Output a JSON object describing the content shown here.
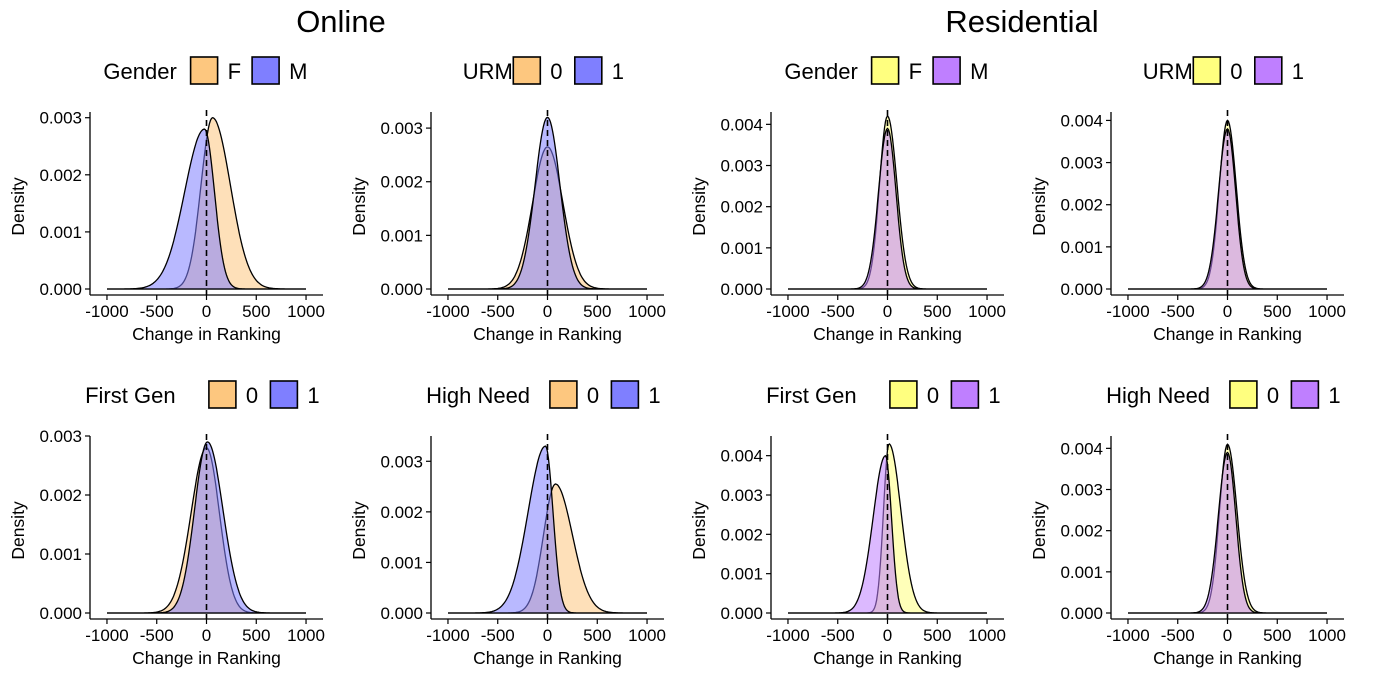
{
  "headers": {
    "left": "Online",
    "right": "Residential"
  },
  "colors": {
    "online_group0": "#FDC77F",
    "online_group1": "#7F7FFF",
    "residential_group0": "#FFFF7F",
    "residential_group1": "#BF7FFF",
    "outline": "#000000",
    "overlap_online": "#7F66C8",
    "overlap_residential": "#BF7FB4"
  },
  "chart_data": [
    {
      "type": "area",
      "group": "Online",
      "legend_title": "Gender",
      "xlabel": "Change in Ranking",
      "ylabel": "Density",
      "xlim": [
        -1000,
        1000
      ],
      "ylim": [
        0,
        0.0031
      ],
      "yticks": [
        "0.000",
        "0.001",
        "0.002",
        "0.003"
      ],
      "xticks": [
        "-1000",
        "-500",
        "0",
        "500",
        "1000"
      ],
      "series": [
        {
          "name": "F",
          "color": "#FDC77F",
          "mode": 60,
          "peak": 0.003,
          "sd_left": 115,
          "sd_right": 180
        },
        {
          "name": "M",
          "color": "#7F7FFF",
          "mode": -20,
          "peak": 0.0028,
          "sd_left": 200,
          "sd_right": 100
        }
      ]
    },
    {
      "type": "area",
      "group": "Online",
      "legend_title": "URM",
      "xlabel": "Change in Ranking",
      "ylabel": "Density",
      "xlim": [
        -1000,
        1000
      ],
      "ylim": [
        0,
        0.0033
      ],
      "yticks": [
        "0.000",
        "0.001",
        "0.002",
        "0.003"
      ],
      "xticks": [
        "-1000",
        "-500",
        "0",
        "500",
        "1000"
      ],
      "series": [
        {
          "name": "0",
          "color": "#FDC77F",
          "mode": 0,
          "peak": 0.00265,
          "sd_left": 150,
          "sd_right": 155
        },
        {
          "name": "1",
          "color": "#7F7FFF",
          "mode": 0,
          "peak": 0.0032,
          "sd_left": 125,
          "sd_right": 125
        }
      ]
    },
    {
      "type": "area",
      "group": "Residential",
      "legend_title": "Gender",
      "xlabel": "Change in Ranking",
      "ylabel": "Density",
      "xlim": [
        -1000,
        1000
      ],
      "ylim": [
        0,
        0.0043
      ],
      "yticks": [
        "0.000",
        "0.001",
        "0.002",
        "0.003",
        "0.004"
      ],
      "xticks": [
        "-1000",
        "-500",
        "0",
        "500",
        "1000"
      ],
      "series": [
        {
          "name": "F",
          "color": "#FFFF7F",
          "mode": 0,
          "peak": 0.0042,
          "sd_left": 80,
          "sd_right": 95
        },
        {
          "name": "M",
          "color": "#BF7FFF",
          "mode": 0,
          "peak": 0.0039,
          "sd_left": 90,
          "sd_right": 85
        }
      ]
    },
    {
      "type": "area",
      "group": "Residential",
      "legend_title": "URM",
      "xlabel": "Change in Ranking",
      "ylabel": "Density",
      "xlim": [
        -1000,
        1000
      ],
      "ylim": [
        0,
        0.0042
      ],
      "yticks": [
        "0.000",
        "0.001",
        "0.002",
        "0.003",
        "0.004"
      ],
      "xticks": [
        "-1000",
        "-500",
        "0",
        "500",
        "1000"
      ],
      "series": [
        {
          "name": "0",
          "color": "#FFFF7F",
          "mode": 0,
          "peak": 0.004,
          "sd_left": 82,
          "sd_right": 88
        },
        {
          "name": "1",
          "color": "#BF7FFF",
          "mode": 0,
          "peak": 0.0038,
          "sd_left": 90,
          "sd_right": 82
        }
      ]
    },
    {
      "type": "area",
      "group": "Online",
      "legend_title": "First Gen",
      "xlabel": "Change in Ranking",
      "ylabel": "Density",
      "xlim": [
        -1000,
        1000
      ],
      "ylim": [
        0,
        0.003
      ],
      "yticks": [
        "0.000",
        "0.001",
        "0.002",
        "0.003"
      ],
      "xticks": [
        "-1000",
        "-500",
        "0",
        "500",
        "1000"
      ],
      "series": [
        {
          "name": "0",
          "color": "#FDC77F",
          "mode": 0,
          "peak": 0.0028,
          "sd_left": 155,
          "sd_right": 130
        },
        {
          "name": "1",
          "color": "#7F7FFF",
          "mode": 10,
          "peak": 0.0029,
          "sd_left": 130,
          "sd_right": 155
        }
      ]
    },
    {
      "type": "area",
      "group": "Online",
      "legend_title": "High Need",
      "xlabel": "Change in Ranking",
      "ylabel": "Density",
      "xlim": [
        -1000,
        1000
      ],
      "ylim": [
        0,
        0.0035
      ],
      "yticks": [
        "0.000",
        "0.001",
        "0.002",
        "0.003"
      ],
      "xticks": [
        "-1000",
        "-500",
        "0",
        "500",
        "1000"
      ],
      "series": [
        {
          "name": "0",
          "color": "#FDC77F",
          "mode": 80,
          "peak": 0.00255,
          "sd_left": 120,
          "sd_right": 170
        },
        {
          "name": "1",
          "color": "#7F7FFF",
          "mode": -20,
          "peak": 0.0033,
          "sd_left": 175,
          "sd_right": 75
        }
      ]
    },
    {
      "type": "area",
      "group": "Residential",
      "legend_title": "First Gen",
      "xlabel": "Change in Ranking",
      "ylabel": "Density",
      "xlim": [
        -1000,
        1000
      ],
      "ylim": [
        0,
        0.0045
      ],
      "yticks": [
        "0.000",
        "0.001",
        "0.002",
        "0.003",
        "0.004"
      ],
      "xticks": [
        "-1000",
        "-500",
        "0",
        "500",
        "1000"
      ],
      "series": [
        {
          "name": "0",
          "color": "#FFFF7F",
          "mode": 15,
          "peak": 0.0043,
          "sd_left": 55,
          "sd_right": 120
        },
        {
          "name": "1",
          "color": "#BF7FFF",
          "mode": -20,
          "peak": 0.004,
          "sd_left": 125,
          "sd_right": 60
        }
      ]
    },
    {
      "type": "area",
      "group": "Residential",
      "legend_title": "High Need",
      "xlabel": "Change in Ranking",
      "ylabel": "Density",
      "xlim": [
        -1000,
        1000
      ],
      "ylim": [
        0,
        0.0043
      ],
      "yticks": [
        "0.000",
        "0.001",
        "0.002",
        "0.003",
        "0.004"
      ],
      "xticks": [
        "-1000",
        "-500",
        "0",
        "500",
        "1000"
      ],
      "series": [
        {
          "name": "0",
          "color": "#FFFF7F",
          "mode": 0,
          "peak": 0.0041,
          "sd_left": 80,
          "sd_right": 95
        },
        {
          "name": "1",
          "color": "#BF7FFF",
          "mode": 0,
          "peak": 0.0039,
          "sd_left": 92,
          "sd_right": 83
        }
      ]
    }
  ]
}
